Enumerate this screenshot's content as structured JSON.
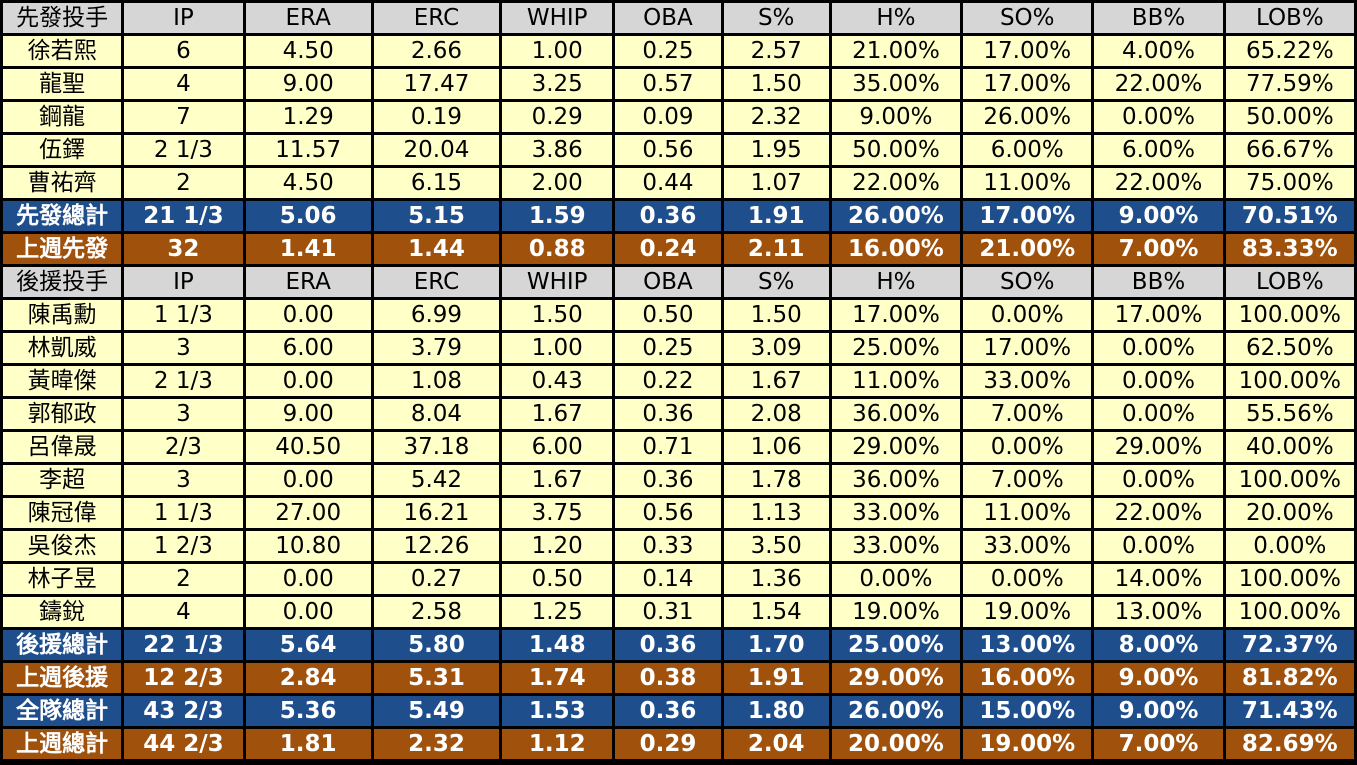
{
  "starter_section": {
    "header": [
      "先發投手",
      "IP",
      "ERA",
      "ERC",
      "WHIP",
      "OBA",
      "S%",
      "H%",
      "SO%",
      "BB%",
      "LOB%"
    ],
    "rows": [
      [
        "徐若熙",
        "6",
        "4.50",
        "2.66",
        "1.00",
        "0.25",
        "2.57",
        "21.00%",
        "17.00%",
        "4.00%",
        "65.22%"
      ],
      [
        "龍聖",
        "4",
        "9.00",
        "17.47",
        "3.25",
        "0.57",
        "1.50",
        "35.00%",
        "17.00%",
        "22.00%",
        "77.59%"
      ],
      [
        "鋼龍",
        "7",
        "1.29",
        "0.19",
        "0.29",
        "0.09",
        "2.32",
        "9.00%",
        "26.00%",
        "0.00%",
        "50.00%"
      ],
      [
        "伍鐸",
        "2 1/3",
        "11.57",
        "20.04",
        "3.86",
        "0.56",
        "1.95",
        "50.00%",
        "6.00%",
        "6.00%",
        "66.67%"
      ],
      [
        "曹祐齊",
        "2",
        "4.50",
        "6.15",
        "2.00",
        "0.44",
        "1.07",
        "22.00%",
        "11.00%",
        "22.00%",
        "75.00%"
      ]
    ],
    "total": [
      "先發總計",
      "21 1/3",
      "5.06",
      "5.15",
      "1.59",
      "0.36",
      "1.91",
      "26.00%",
      "17.00%",
      "9.00%",
      "70.51%"
    ],
    "last_week": [
      "上週先發",
      "32",
      "1.41",
      "1.44",
      "0.88",
      "0.24",
      "2.11",
      "16.00%",
      "21.00%",
      "7.00%",
      "83.33%"
    ]
  },
  "reliever_section": {
    "header": [
      "後援投手",
      "IP",
      "ERA",
      "ERC",
      "WHIP",
      "OBA",
      "S%",
      "H%",
      "SO%",
      "BB%",
      "LOB%"
    ],
    "rows": [
      [
        "陳禹勳",
        "1 1/3",
        "0.00",
        "6.99",
        "1.50",
        "0.50",
        "1.50",
        "17.00%",
        "0.00%",
        "17.00%",
        "100.00%"
      ],
      [
        "林凱威",
        "3",
        "6.00",
        "3.79",
        "1.00",
        "0.25",
        "3.09",
        "25.00%",
        "17.00%",
        "0.00%",
        "62.50%"
      ],
      [
        "黃暐傑",
        "2 1/3",
        "0.00",
        "1.08",
        "0.43",
        "0.22",
        "1.67",
        "11.00%",
        "33.00%",
        "0.00%",
        "100.00%"
      ],
      [
        "郭郁政",
        "3",
        "9.00",
        "8.04",
        "1.67",
        "0.36",
        "2.08",
        "36.00%",
        "7.00%",
        "0.00%",
        "55.56%"
      ],
      [
        "呂偉晟",
        "2/3",
        "40.50",
        "37.18",
        "6.00",
        "0.71",
        "1.06",
        "29.00%",
        "0.00%",
        "29.00%",
        "40.00%"
      ],
      [
        "李超",
        "3",
        "0.00",
        "5.42",
        "1.67",
        "0.36",
        "1.78",
        "36.00%",
        "7.00%",
        "0.00%",
        "100.00%"
      ],
      [
        "陳冠偉",
        "1 1/3",
        "27.00",
        "16.21",
        "3.75",
        "0.56",
        "1.13",
        "33.00%",
        "11.00%",
        "22.00%",
        "20.00%"
      ],
      [
        "吳俊杰",
        "1 2/3",
        "10.80",
        "12.26",
        "1.20",
        "0.33",
        "3.50",
        "33.00%",
        "33.00%",
        "0.00%",
        "0.00%"
      ],
      [
        "林子昱",
        "2",
        "0.00",
        "0.27",
        "0.50",
        "0.14",
        "1.36",
        "0.00%",
        "0.00%",
        "14.00%",
        "100.00%"
      ],
      [
        "鑄銳",
        "4",
        "0.00",
        "2.58",
        "1.25",
        "0.31",
        "1.54",
        "19.00%",
        "19.00%",
        "13.00%",
        "100.00%"
      ]
    ],
    "total": [
      "後援總計",
      "22 1/3",
      "5.64",
      "5.80",
      "1.48",
      "0.36",
      "1.70",
      "25.00%",
      "13.00%",
      "8.00%",
      "72.37%"
    ],
    "last_week": [
      "上週後援",
      "12 2/3",
      "2.84",
      "5.31",
      "1.74",
      "0.38",
      "1.91",
      "29.00%",
      "16.00%",
      "9.00%",
      "81.82%"
    ]
  },
  "team_total": [
    "全隊總計",
    "43 2/3",
    "5.36",
    "5.49",
    "1.53",
    "0.36",
    "1.80",
    "26.00%",
    "15.00%",
    "9.00%",
    "71.43%"
  ],
  "team_last_week": [
    "上週總計",
    "44 2/3",
    "1.81",
    "2.32",
    "1.12",
    "0.29",
    "2.04",
    "20.00%",
    "19.00%",
    "7.00%",
    "82.69%"
  ],
  "colors": {
    "header_bg": "#d6d6d6",
    "data_bg": "#ffffc8",
    "total_blue": "#1f4e8c",
    "last_week_brown": "#a0520c",
    "border": "#000000"
  }
}
